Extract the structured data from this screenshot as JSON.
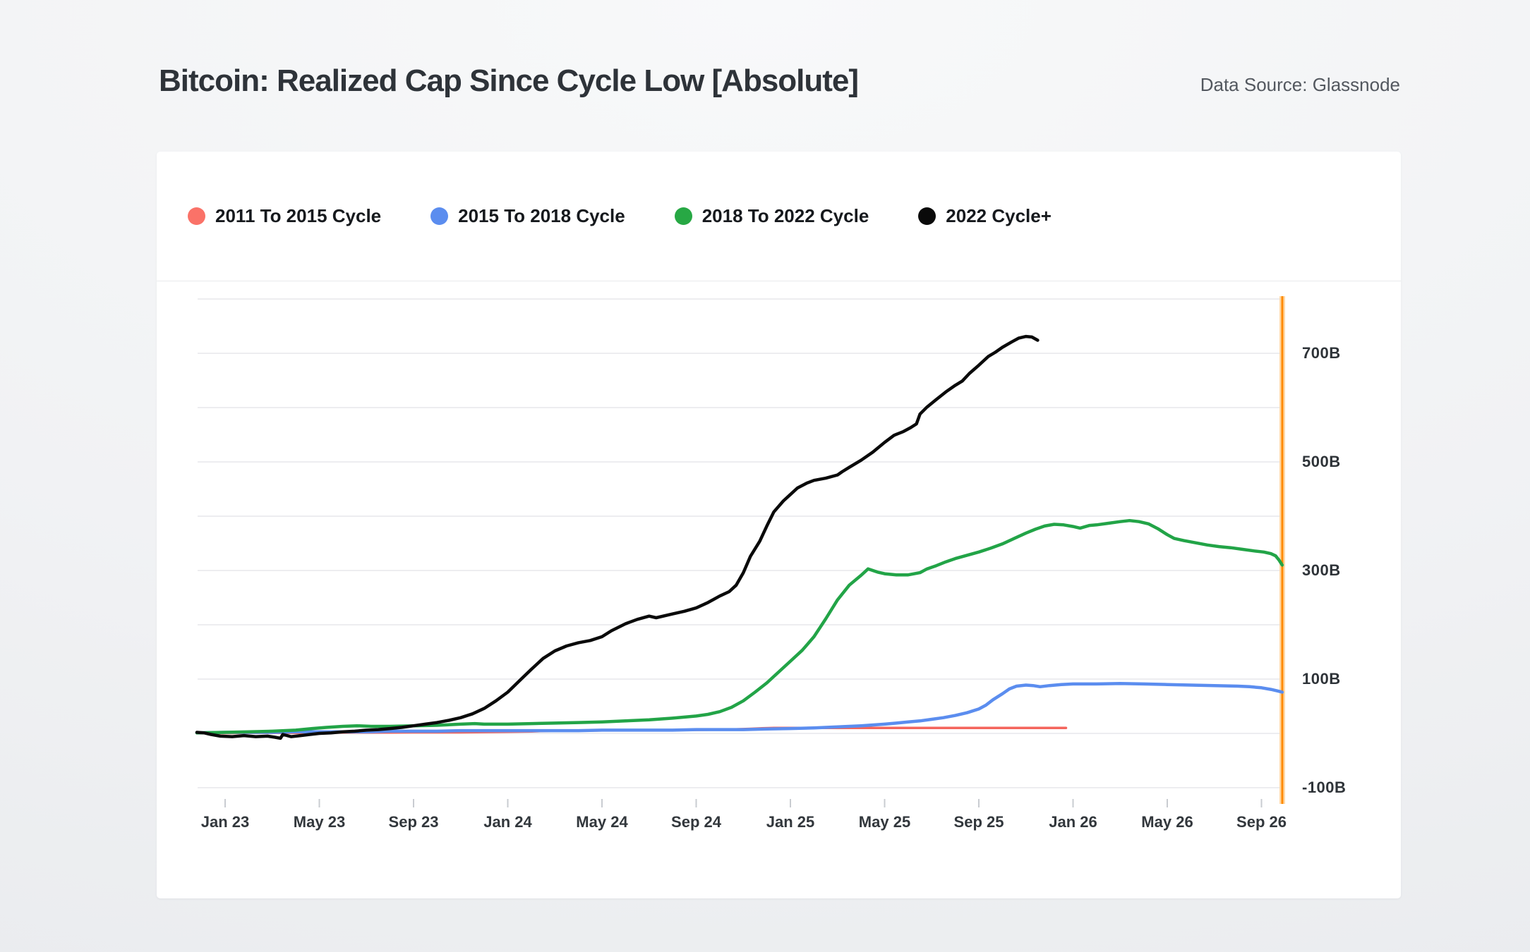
{
  "header": {
    "title": "Bitcoin: Realized Cap Since Cycle Low [Absolute]",
    "data_source": "Data Source: Glassnode"
  },
  "legend": [
    {
      "label": "2011 To 2015 Cycle",
      "color": "#FA7268"
    },
    {
      "label": "2015 To 2018 Cycle",
      "color": "#5B8DEF"
    },
    {
      "label": "2018 To 2022 Cycle",
      "color": "#27A844"
    },
    {
      "label": "2022 Cycle+",
      "color": "#0A0A0A"
    }
  ],
  "chart": {
    "gridlines": {
      "values": [
        800,
        700,
        600,
        500,
        400,
        300,
        200,
        100,
        0,
        -100
      ],
      "color": "#ededf0"
    },
    "tick_color": "#c9ccd1",
    "marker_line": {
      "color": "#FF8A00",
      "halo": "#FFD9A8"
    },
    "y_axis": {
      "labels": [
        {
          "text": "700B",
          "value": 700
        },
        {
          "text": "500B",
          "value": 500
        },
        {
          "text": "300B",
          "value": 300
        },
        {
          "text": "100B",
          "value": 100
        },
        {
          "text": "-100B",
          "value": -100
        }
      ]
    },
    "x_axis": {
      "labels": [
        {
          "text": "Jan 23",
          "month": 0
        },
        {
          "text": "May 23",
          "month": 4
        },
        {
          "text": "Sep 23",
          "month": 8
        },
        {
          "text": "Jan 24",
          "month": 12
        },
        {
          "text": "May 24",
          "month": 16
        },
        {
          "text": "Sep 24",
          "month": 20
        },
        {
          "text": "Jan 25",
          "month": 24
        },
        {
          "text": "May 25",
          "month": 28
        },
        {
          "text": "Sep 25",
          "month": 32
        },
        {
          "text": "Jan 26",
          "month": 36
        },
        {
          "text": "May 26",
          "month": 40
        },
        {
          "text": "Sep 26",
          "month": 44
        }
      ]
    }
  },
  "chart_data": {
    "type": "line",
    "title": "Bitcoin: Realized Cap Since Cycle Low [Absolute]",
    "x_unit": "calendar months aligned to the 2022 cycle low (0 = Jan 2023)",
    "y_unit": "USD billions",
    "ylim": [
      -125,
      810
    ],
    "xlim": [
      -1.2,
      44.9
    ],
    "legend_position": "top",
    "grid": "horizontal",
    "series": [
      {
        "name": "2011 To 2015 Cycle",
        "color": "#F4655C",
        "width": 3.5,
        "points": [
          [
            -1.2,
            0.5
          ],
          [
            0,
            0.5
          ],
          [
            1,
            1
          ],
          [
            2,
            1
          ],
          [
            3,
            1
          ],
          [
            4,
            1
          ],
          [
            5,
            1.5
          ],
          [
            6,
            1.5
          ],
          [
            7,
            1.5
          ],
          [
            8,
            2
          ],
          [
            9,
            2
          ],
          [
            10,
            2
          ],
          [
            11,
            2.5
          ],
          [
            12,
            3
          ],
          [
            13,
            3.5
          ],
          [
            13.6,
            4.5
          ],
          [
            14,
            5
          ],
          [
            15,
            5
          ],
          [
            16,
            5.5
          ],
          [
            17,
            5.5
          ],
          [
            18,
            6
          ],
          [
            19,
            6
          ],
          [
            20,
            6.5
          ],
          [
            21,
            7
          ],
          [
            21.7,
            7.5
          ],
          [
            22.3,
            8.5
          ],
          [
            22.8,
            9.5
          ],
          [
            23.3,
            10
          ],
          [
            24,
            10
          ],
          [
            25,
            10
          ],
          [
            26,
            10
          ],
          [
            27,
            10
          ],
          [
            28,
            10
          ],
          [
            29,
            10
          ],
          [
            30,
            10
          ],
          [
            31,
            10
          ],
          [
            32,
            10
          ],
          [
            33,
            10
          ],
          [
            34,
            10
          ],
          [
            35,
            10
          ],
          [
            35.7,
            10
          ]
        ]
      },
      {
        "name": "2015 To 2018 Cycle",
        "color": "#5B8DEF",
        "width": 4.5,
        "points": [
          [
            -1.2,
            1
          ],
          [
            0,
            2
          ],
          [
            1,
            2
          ],
          [
            2,
            2
          ],
          [
            3,
            3
          ],
          [
            4,
            3
          ],
          [
            5,
            3
          ],
          [
            6,
            3
          ],
          [
            7,
            4
          ],
          [
            8,
            4
          ],
          [
            9,
            4
          ],
          [
            10,
            5
          ],
          [
            11,
            5
          ],
          [
            12,
            5
          ],
          [
            13,
            5
          ],
          [
            14,
            5
          ],
          [
            15,
            5
          ],
          [
            16,
            6
          ],
          [
            17,
            6
          ],
          [
            18,
            6
          ],
          [
            19,
            6
          ],
          [
            20,
            7
          ],
          [
            21,
            7
          ],
          [
            22,
            7
          ],
          [
            23,
            8
          ],
          [
            24,
            9
          ],
          [
            25,
            10
          ],
          [
            26,
            12
          ],
          [
            27,
            14
          ],
          [
            28,
            17
          ],
          [
            28.5,
            19
          ],
          [
            29,
            21
          ],
          [
            29.5,
            23
          ],
          [
            30,
            26
          ],
          [
            30.5,
            29
          ],
          [
            31,
            33
          ],
          [
            31.5,
            38
          ],
          [
            32,
            45
          ],
          [
            32.3,
            52
          ],
          [
            32.6,
            62
          ],
          [
            33,
            73
          ],
          [
            33.3,
            82
          ],
          [
            33.6,
            87
          ],
          [
            34,
            89
          ],
          [
            34.3,
            88
          ],
          [
            34.6,
            86
          ],
          [
            35,
            88
          ],
          [
            35.5,
            90
          ],
          [
            36,
            91
          ],
          [
            37,
            91
          ],
          [
            38,
            92
          ],
          [
            39,
            91
          ],
          [
            40,
            90
          ],
          [
            41,
            89
          ],
          [
            42,
            88
          ],
          [
            43,
            87
          ],
          [
            43.5,
            86
          ],
          [
            44,
            84
          ],
          [
            44.4,
            81
          ],
          [
            44.7,
            78
          ],
          [
            44.88,
            76
          ]
        ]
      },
      {
        "name": "2018 To 2022 Cycle",
        "color": "#22A447",
        "width": 4.5,
        "points": [
          [
            -1.2,
            1
          ],
          [
            0,
            2
          ],
          [
            1,
            3
          ],
          [
            2,
            4
          ],
          [
            3,
            6
          ],
          [
            3.7,
            9
          ],
          [
            4.3,
            11
          ],
          [
            5,
            13
          ],
          [
            5.6,
            14
          ],
          [
            6.2,
            13
          ],
          [
            7,
            13
          ],
          [
            8,
            14
          ],
          [
            9,
            15
          ],
          [
            10,
            17
          ],
          [
            10.6,
            18
          ],
          [
            11,
            17
          ],
          [
            12,
            17
          ],
          [
            13,
            18
          ],
          [
            14,
            19
          ],
          [
            15,
            20
          ],
          [
            16,
            21
          ],
          [
            17,
            23
          ],
          [
            18,
            25
          ],
          [
            19,
            28
          ],
          [
            20,
            32
          ],
          [
            20.5,
            35
          ],
          [
            21,
            40
          ],
          [
            21.5,
            48
          ],
          [
            22,
            60
          ],
          [
            22.5,
            76
          ],
          [
            23,
            93
          ],
          [
            23.5,
            113
          ],
          [
            24,
            133
          ],
          [
            24.5,
            153
          ],
          [
            25,
            178
          ],
          [
            25.5,
            211
          ],
          [
            26,
            246
          ],
          [
            26.5,
            273
          ],
          [
            27,
            291
          ],
          [
            27.3,
            303
          ],
          [
            27.7,
            297
          ],
          [
            28,
            294
          ],
          [
            28.5,
            292
          ],
          [
            29,
            292
          ],
          [
            29.5,
            296
          ],
          [
            29.8,
            303
          ],
          [
            30.2,
            309
          ],
          [
            30.6,
            316
          ],
          [
            31,
            322
          ],
          [
            31.5,
            328
          ],
          [
            32,
            334
          ],
          [
            32.5,
            341
          ],
          [
            33,
            349
          ],
          [
            33.5,
            359
          ],
          [
            34,
            369
          ],
          [
            34.4,
            376
          ],
          [
            34.8,
            382
          ],
          [
            35.2,
            385
          ],
          [
            35.6,
            384
          ],
          [
            36,
            381
          ],
          [
            36.3,
            378
          ],
          [
            36.7,
            383
          ],
          [
            37,
            384
          ],
          [
            37.5,
            387
          ],
          [
            38,
            390
          ],
          [
            38.4,
            392
          ],
          [
            38.8,
            390
          ],
          [
            39.2,
            386
          ],
          [
            39.6,
            377
          ],
          [
            40,
            366
          ],
          [
            40.3,
            359
          ],
          [
            40.7,
            355
          ],
          [
            41.2,
            351
          ],
          [
            41.7,
            347
          ],
          [
            42.2,
            344
          ],
          [
            42.7,
            342
          ],
          [
            43.2,
            339
          ],
          [
            43.7,
            336
          ],
          [
            44.1,
            334
          ],
          [
            44.4,
            331
          ],
          [
            44.6,
            327
          ],
          [
            44.75,
            319
          ],
          [
            44.88,
            310
          ]
        ]
      },
      {
        "name": "2022 Cycle+",
        "color": "#0A0A0A",
        "width": 4.5,
        "points": [
          [
            -1.2,
            2
          ],
          [
            -0.9,
            1
          ],
          [
            -0.6,
            -2
          ],
          [
            -0.2,
            -5
          ],
          [
            0.3,
            -6
          ],
          [
            0.8,
            -4
          ],
          [
            1.3,
            -6
          ],
          [
            1.8,
            -5
          ],
          [
            2.1,
            -7
          ],
          [
            2.35,
            -9
          ],
          [
            2.45,
            -2
          ],
          [
            2.8,
            -6
          ],
          [
            3.2,
            -4
          ],
          [
            3.6,
            -2
          ],
          [
            4,
            0
          ],
          [
            4.5,
            1
          ],
          [
            5,
            3
          ],
          [
            5.5,
            4
          ],
          [
            6,
            6
          ],
          [
            6.5,
            7
          ],
          [
            7,
            9
          ],
          [
            7.5,
            11
          ],
          [
            8,
            14
          ],
          [
            8.5,
            17
          ],
          [
            9,
            20
          ],
          [
            9.5,
            24
          ],
          [
            10,
            29
          ],
          [
            10.5,
            36
          ],
          [
            11,
            46
          ],
          [
            11.5,
            60
          ],
          [
            12,
            76
          ],
          [
            12.5,
            97
          ],
          [
            13,
            118
          ],
          [
            13.5,
            138
          ],
          [
            14,
            152
          ],
          [
            14.5,
            161
          ],
          [
            15,
            167
          ],
          [
            15.5,
            171
          ],
          [
            16,
            178
          ],
          [
            16.4,
            189
          ],
          [
            17,
            202
          ],
          [
            17.5,
            210
          ],
          [
            18,
            216
          ],
          [
            18.3,
            213
          ],
          [
            19,
            220
          ],
          [
            19.5,
            225
          ],
          [
            20,
            231
          ],
          [
            20.5,
            241
          ],
          [
            21,
            253
          ],
          [
            21.4,
            261
          ],
          [
            21.7,
            273
          ],
          [
            22,
            296
          ],
          [
            22.3,
            326
          ],
          [
            22.7,
            354
          ],
          [
            23,
            382
          ],
          [
            23.3,
            408
          ],
          [
            23.7,
            428
          ],
          [
            24,
            440
          ],
          [
            24.3,
            452
          ],
          [
            24.7,
            461
          ],
          [
            25,
            466
          ],
          [
            25.5,
            470
          ],
          [
            26,
            476
          ],
          [
            26.2,
            482
          ],
          [
            26.5,
            490
          ],
          [
            27,
            503
          ],
          [
            27.5,
            518
          ],
          [
            28,
            536
          ],
          [
            28.4,
            549
          ],
          [
            28.8,
            556
          ],
          [
            29.1,
            563
          ],
          [
            29.35,
            570
          ],
          [
            29.5,
            588
          ],
          [
            29.8,
            601
          ],
          [
            30.2,
            615
          ],
          [
            30.6,
            629
          ],
          [
            31,
            641
          ],
          [
            31.3,
            649
          ],
          [
            31.6,
            663
          ],
          [
            32,
            678
          ],
          [
            32.4,
            694
          ],
          [
            32.7,
            702
          ],
          [
            33,
            711
          ],
          [
            33.4,
            721
          ],
          [
            33.7,
            728
          ],
          [
            34,
            731
          ],
          [
            34.25,
            730
          ],
          [
            34.5,
            724
          ]
        ]
      }
    ]
  }
}
